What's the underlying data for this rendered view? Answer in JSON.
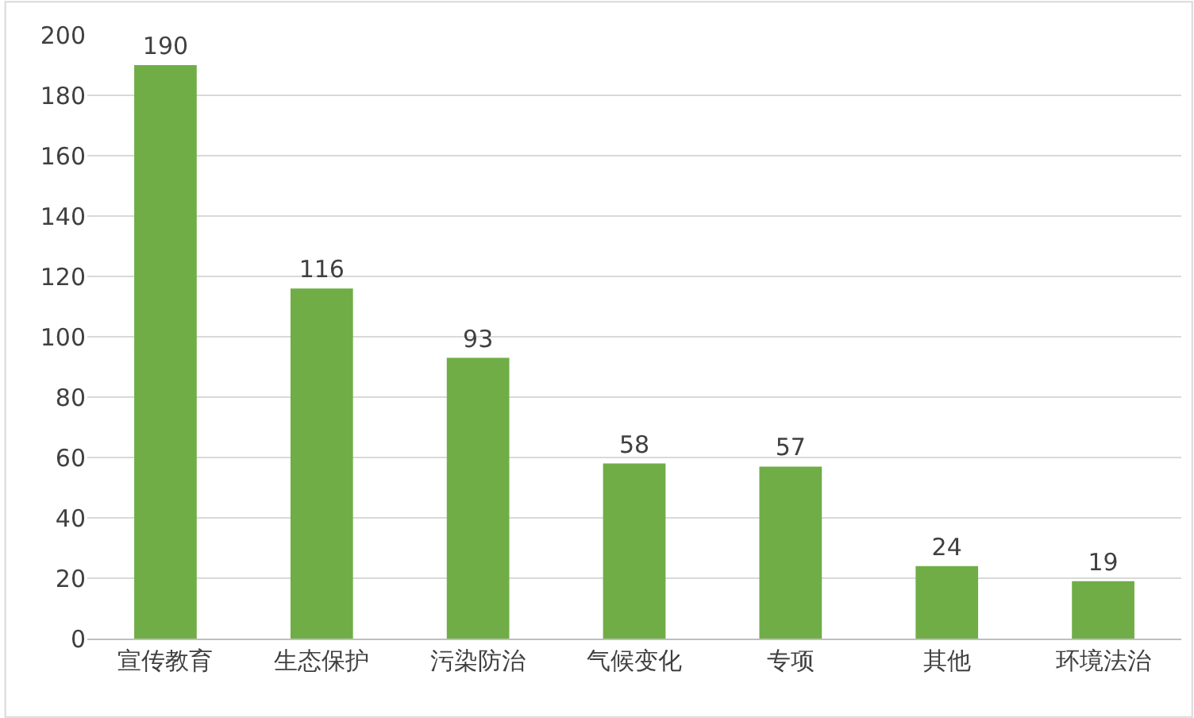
{
  "chart_data": {
    "type": "bar",
    "categories": [
      "宣传教育",
      "生态保护",
      "污染防治",
      "气候变化",
      "专项",
      "其他",
      "环境法治"
    ],
    "values": [
      190,
      116,
      93,
      58,
      57,
      24,
      19
    ],
    "color": "#70ad47",
    "ylim": [
      0,
      200
    ],
    "yticks": [
      0,
      20,
      40,
      60,
      80,
      100,
      120,
      140,
      160,
      180,
      200
    ],
    "grid": "y",
    "legend": false,
    "data_labels": true
  }
}
